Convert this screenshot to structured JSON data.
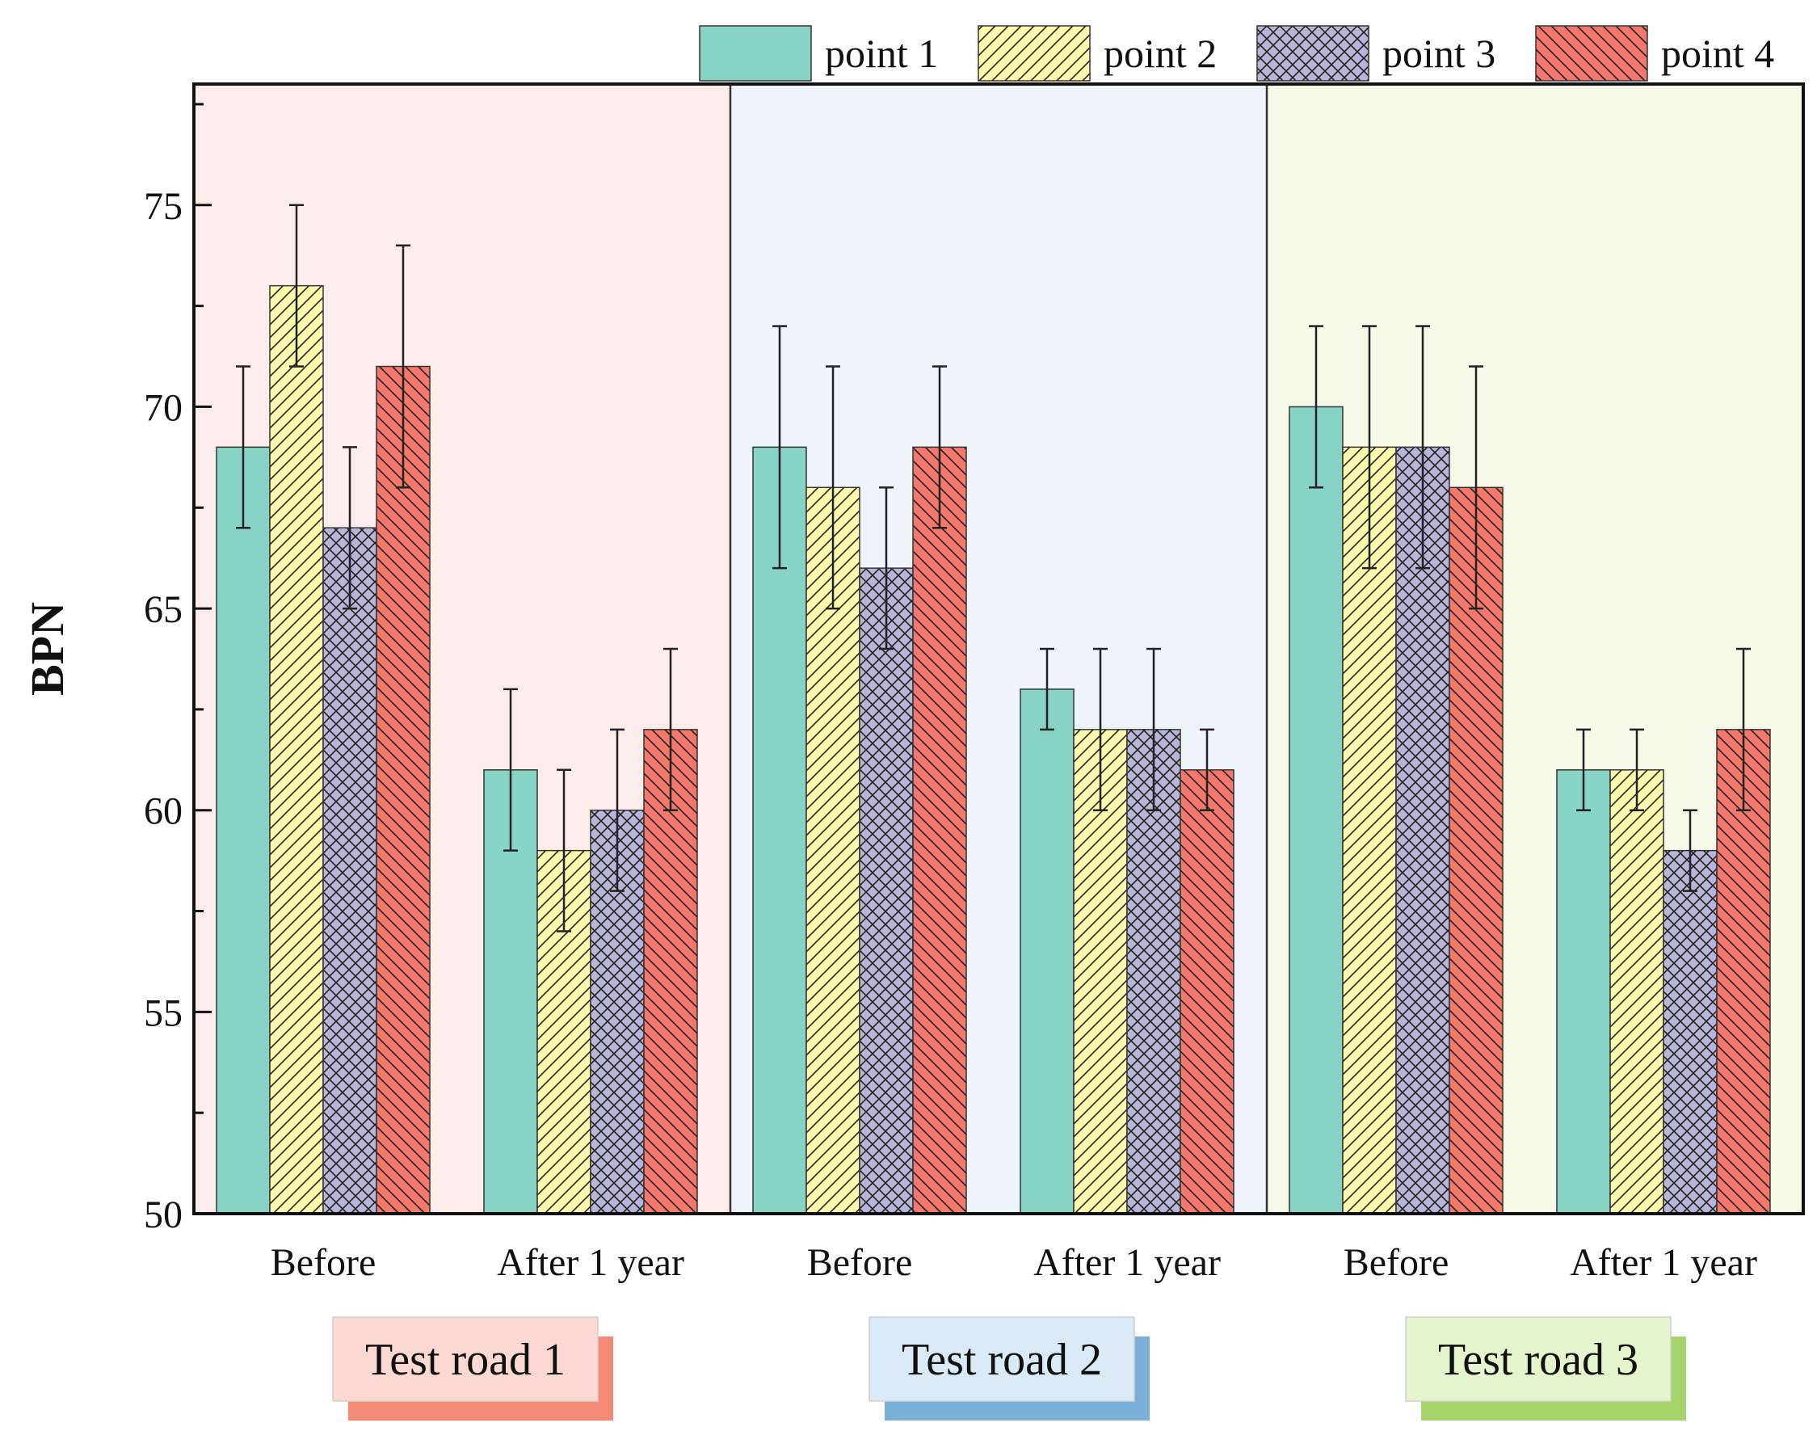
{
  "chart_data": {
    "type": "bar",
    "ylabel": "BPN",
    "ylim": [
      50,
      78
    ],
    "yticks": [
      50,
      55,
      60,
      65,
      70,
      75
    ],
    "legend_position": "top-right",
    "grid": false,
    "series": [
      {
        "name": "point 1",
        "color": "#88d4c4",
        "pattern": "none"
      },
      {
        "name": "point 2",
        "color": "#fdfaac",
        "pattern": "diagonal-forward"
      },
      {
        "name": "point 3",
        "color": "#b7b6d8",
        "pattern": "crosshatch"
      },
      {
        "name": "point 4",
        "color": "#f3776a",
        "pattern": "diagonal-backward"
      }
    ],
    "groups": [
      {
        "name": "Test road 1",
        "panel_color": "#fdecea",
        "label_bg": "#fcd8d2",
        "label_shadow": "#f58a76",
        "categories": [
          {
            "label": "Before",
            "values": [
              69,
              73,
              67,
              71
            ],
            "errors": [
              [
                67,
                71
              ],
              [
                71,
                75
              ],
              [
                65,
                69
              ],
              [
                68,
                74
              ]
            ]
          },
          {
            "label": "After 1 year",
            "values": [
              61,
              59,
              60,
              62
            ],
            "errors": [
              [
                59,
                63
              ],
              [
                57,
                61
              ],
              [
                58,
                62
              ],
              [
                60,
                64
              ]
            ]
          }
        ]
      },
      {
        "name": "Test road 2",
        "panel_color": "#edf5fb",
        "label_bg": "#d9e9f6",
        "label_shadow": "#7ab0d8",
        "categories": [
          {
            "label": "Before",
            "values": [
              69,
              68,
              66,
              69
            ],
            "errors": [
              [
                66,
                72
              ],
              [
                65,
                71
              ],
              [
                64,
                68
              ],
              [
                67,
                71
              ]
            ]
          },
          {
            "label": "After 1 year",
            "values": [
              63,
              62,
              62,
              61
            ],
            "errors": [
              [
                62,
                64
              ],
              [
                60,
                64
              ],
              [
                60,
                64
              ],
              [
                60,
                62
              ]
            ]
          }
        ]
      },
      {
        "name": "Test road 3",
        "panel_color": "#f6f9e8",
        "label_bg": "#e4f4cc",
        "label_shadow": "#a6d46a",
        "categories": [
          {
            "label": "Before",
            "values": [
              70,
              69,
              69,
              68
            ],
            "errors": [
              [
                68,
                72
              ],
              [
                66,
                72
              ],
              [
                66,
                72
              ],
              [
                65,
                71
              ]
            ]
          },
          {
            "label": "After 1 year",
            "values": [
              61,
              61,
              59,
              62
            ],
            "errors": [
              [
                60,
                62
              ],
              [
                60,
                62
              ],
              [
                58,
                60
              ],
              [
                60,
                64
              ]
            ]
          }
        ]
      }
    ]
  }
}
